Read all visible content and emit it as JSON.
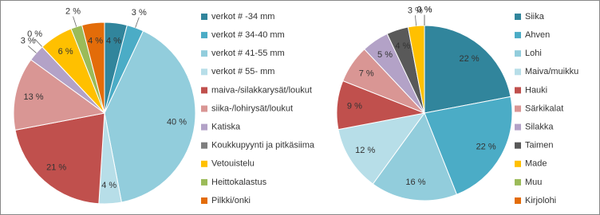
{
  "chart_data": [
    {
      "type": "pie",
      "categories": [
        "verkot # -34 mm",
        "verkot # 34-40 mm",
        "verkot # 41-55 mm",
        "verkot # 55- mm",
        "maiva-/silakkarysät/loukut",
        "siika-/lohirysät/loukut",
        "Katiska",
        "Koukkupyynti ja pitkäsiima",
        "Vetouistelu",
        "Heittokalastus",
        "Pilkki/onki"
      ],
      "values": [
        4,
        3,
        40,
        4,
        21,
        13,
        3,
        0,
        6,
        2,
        4
      ],
      "value_labels": [
        "4 %",
        "3 %",
        "40 %",
        "4 %",
        "21 %",
        "13 %",
        "3 %",
        "0 %",
        "6 %",
        "2 %",
        "4 %"
      ],
      "colors": [
        "#31859c",
        "#4bacc6",
        "#92cddc",
        "#b7dee8",
        "#c0504d",
        "#d99694",
        "#b3a2c7",
        "#7f7f7f",
        "#ffc000",
        "#9bbb59",
        "#e36c09"
      ]
    },
    {
      "type": "pie",
      "categories": [
        "Siika",
        "Ahven",
        "Lohi",
        "Maiva/muikku",
        "Hauki",
        "Särkikalat",
        "Silakka",
        "Taimen",
        "Made",
        "Muu",
        "Kirjolohi"
      ],
      "values": [
        22,
        22,
        16,
        12,
        9,
        7,
        5,
        4,
        3,
        0,
        0
      ],
      "value_labels": [
        "22 %",
        "22 %",
        "16 %",
        "12 %",
        "9 %",
        "7 %",
        "5 %",
        "4 %",
        "3 %",
        "0 %",
        "0 %"
      ],
      "colors": [
        "#31859c",
        "#4bacc6",
        "#92cddc",
        "#b7dee8",
        "#c0504d",
        "#d99694",
        "#b3a2c7",
        "#595959",
        "#ffc000",
        "#9bbb59",
        "#e36c09"
      ]
    }
  ]
}
